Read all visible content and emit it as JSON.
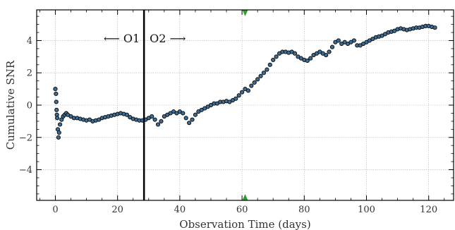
{
  "chart_data": {
    "type": "scatter",
    "title": "",
    "xlabel": "Observation Time (days)",
    "ylabel": "Cumulative SNR",
    "xlim": [
      -6,
      128
    ],
    "ylim": [
      -5.9,
      5.9
    ],
    "xticks": [
      0,
      20,
      40,
      60,
      80,
      100,
      120
    ],
    "yticks": [
      -4,
      -2,
      0,
      2,
      4
    ],
    "x_minor_step": 5,
    "y_minor_step": 0.5,
    "grid": true,
    "legend": "none",
    "colors": {
      "point_fill": "#3b6e99",
      "point_edge": "#111111",
      "divider": "#000000",
      "marker": "#2ca02c",
      "grid": "#b0b0b0"
    },
    "divider": {
      "x": 28.5,
      "left_label": "⟵ O1",
      "right_label": "O2 ⟶"
    },
    "markers": {
      "x": 61,
      "shape": "triangle"
    },
    "series": [
      {
        "marker": "circle",
        "points": [
          [
            0.0,
            1.0
          ],
          [
            0.2,
            0.7
          ],
          [
            0.3,
            0.2
          ],
          [
            0.4,
            -0.3
          ],
          [
            0.5,
            -0.6
          ],
          [
            0.6,
            -0.8
          ],
          [
            0.8,
            -1.5
          ],
          [
            1.0,
            -2.0
          ],
          [
            1.2,
            -1.7
          ],
          [
            1.5,
            -1.2
          ],
          [
            2,
            -0.9
          ],
          [
            2.5,
            -0.7
          ],
          [
            3,
            -0.6
          ],
          [
            3.5,
            -0.5
          ],
          [
            4,
            -0.6
          ],
          [
            5,
            -0.7
          ],
          [
            6,
            -0.8
          ],
          [
            7,
            -0.8
          ],
          [
            8,
            -0.85
          ],
          [
            9,
            -0.9
          ],
          [
            10,
            -0.95
          ],
          [
            11,
            -0.9
          ],
          [
            12,
            -1.0
          ],
          [
            13,
            -0.95
          ],
          [
            14,
            -0.9
          ],
          [
            15,
            -0.8
          ],
          [
            16,
            -0.75
          ],
          [
            17,
            -0.7
          ],
          [
            18,
            -0.65
          ],
          [
            19,
            -0.6
          ],
          [
            20,
            -0.55
          ],
          [
            21,
            -0.5
          ],
          [
            22,
            -0.55
          ],
          [
            23,
            -0.6
          ],
          [
            24,
            -0.75
          ],
          [
            25,
            -0.85
          ],
          [
            26,
            -0.9
          ],
          [
            27,
            -0.95
          ],
          [
            28,
            -0.95
          ],
          [
            29,
            -0.9
          ],
          [
            30,
            -0.8
          ],
          [
            31,
            -0.7
          ],
          [
            32,
            -0.9
          ],
          [
            33,
            -1.2
          ],
          [
            34,
            -1.0
          ],
          [
            35,
            -0.7
          ],
          [
            36,
            -0.6
          ],
          [
            37,
            -0.5
          ],
          [
            38,
            -0.4
          ],
          [
            39,
            -0.5
          ],
          [
            40,
            -0.4
          ],
          [
            41,
            -0.5
          ],
          [
            42,
            -0.8
          ],
          [
            43,
            -1.1
          ],
          [
            44,
            -0.9
          ],
          [
            45,
            -0.6
          ],
          [
            46,
            -0.4
          ],
          [
            47,
            -0.3
          ],
          [
            48,
            -0.2
          ],
          [
            49,
            -0.1
          ],
          [
            50,
            0.0
          ],
          [
            51,
            0.1
          ],
          [
            52,
            0.1
          ],
          [
            53,
            0.2
          ],
          [
            54,
            0.2
          ],
          [
            55,
            0.25
          ],
          [
            56,
            0.2
          ],
          [
            57,
            0.3
          ],
          [
            58,
            0.4
          ],
          [
            59,
            0.6
          ],
          [
            60,
            0.8
          ],
          [
            61,
            1.0
          ],
          [
            62,
            0.9
          ],
          [
            63,
            1.2
          ],
          [
            64,
            1.4
          ],
          [
            65,
            1.6
          ],
          [
            66,
            1.8
          ],
          [
            67,
            2.0
          ],
          [
            68,
            2.2
          ],
          [
            69,
            2.5
          ],
          [
            70,
            2.8
          ],
          [
            71,
            3.0
          ],
          [
            72,
            3.2
          ],
          [
            73,
            3.3
          ],
          [
            74,
            3.3
          ],
          [
            75,
            3.25
          ],
          [
            76,
            3.3
          ],
          [
            77,
            3.2
          ],
          [
            78,
            3.0
          ],
          [
            79,
            2.9
          ],
          [
            80,
            2.8
          ],
          [
            81,
            2.75
          ],
          [
            82,
            2.9
          ],
          [
            83,
            3.1
          ],
          [
            84,
            3.2
          ],
          [
            85,
            3.3
          ],
          [
            86,
            3.2
          ],
          [
            87,
            3.1
          ],
          [
            88,
            3.3
          ],
          [
            89,
            3.6
          ],
          [
            90,
            3.9
          ],
          [
            91,
            4.0
          ],
          [
            92,
            3.8
          ],
          [
            93,
            3.9
          ],
          [
            94,
            3.8
          ],
          [
            95,
            3.9
          ],
          [
            96,
            4.0
          ],
          [
            97,
            3.7
          ],
          [
            98,
            3.7
          ],
          [
            99,
            3.8
          ],
          [
            100,
            3.9
          ],
          [
            101,
            4.0
          ],
          [
            102,
            4.1
          ],
          [
            103,
            4.2
          ],
          [
            104,
            4.25
          ],
          [
            105,
            4.3
          ],
          [
            106,
            4.4
          ],
          [
            107,
            4.5
          ],
          [
            108,
            4.55
          ],
          [
            109,
            4.6
          ],
          [
            110,
            4.7
          ],
          [
            111,
            4.75
          ],
          [
            112,
            4.7
          ],
          [
            113,
            4.65
          ],
          [
            114,
            4.7
          ],
          [
            115,
            4.75
          ],
          [
            116,
            4.8
          ],
          [
            117,
            4.8
          ],
          [
            118,
            4.85
          ],
          [
            119,
            4.9
          ],
          [
            120,
            4.9
          ],
          [
            121,
            4.85
          ],
          [
            122,
            4.8
          ]
        ]
      }
    ]
  }
}
